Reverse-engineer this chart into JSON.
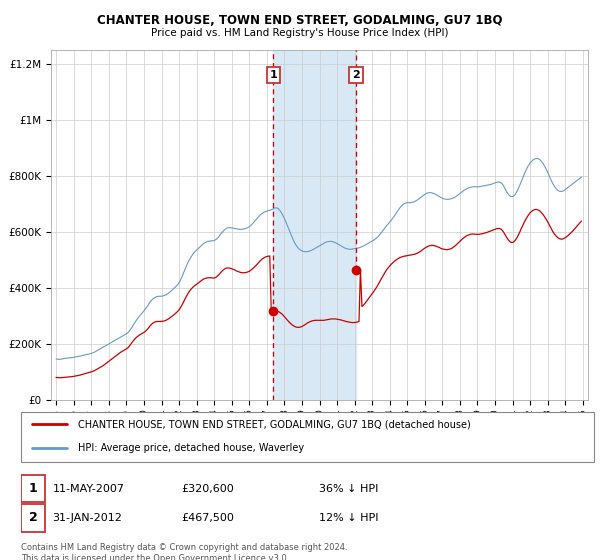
{
  "title": "CHANTER HOUSE, TOWN END STREET, GODALMING, GU7 1BQ",
  "subtitle": "Price paid vs. HM Land Registry's House Price Index (HPI)",
  "ylim": [
    0,
    1250000
  ],
  "xlim": [
    1994.7,
    2025.3
  ],
  "sale1_year": 2007.36,
  "sale1_price": 320600,
  "sale1_label": "1",
  "sale1_date": "11-MAY-2007",
  "sale1_hpi": "36% ↓ HPI",
  "sale2_year": 2012.08,
  "sale2_price": 467500,
  "sale2_label": "2",
  "sale2_date": "31-JAN-2012",
  "sale2_hpi": "12% ↓ HPI",
  "red_color": "#cc0000",
  "blue_color": "#6699cc",
  "shade_color": "#d8e8f5",
  "legend_line1": "CHANTER HOUSE, TOWN END STREET, GODALMING, GU7 1BQ (detached house)",
  "legend_line2": "HPI: Average price, detached house, Waverley",
  "footer": "Contains HM Land Registry data © Crown copyright and database right 2024.\nThis data is licensed under the Open Government Licence v3.0.",
  "hpi_years": [
    1995.0,
    1995.083,
    1995.167,
    1995.25,
    1995.333,
    1995.417,
    1995.5,
    1995.583,
    1995.667,
    1995.75,
    1995.833,
    1995.917,
    1996.0,
    1996.083,
    1996.167,
    1996.25,
    1996.333,
    1996.417,
    1996.5,
    1996.583,
    1996.667,
    1996.75,
    1996.833,
    1996.917,
    1997.0,
    1997.083,
    1997.167,
    1997.25,
    1997.333,
    1997.417,
    1997.5,
    1997.583,
    1997.667,
    1997.75,
    1997.833,
    1997.917,
    1998.0,
    1998.083,
    1998.167,
    1998.25,
    1998.333,
    1998.417,
    1998.5,
    1998.583,
    1998.667,
    1998.75,
    1998.833,
    1998.917,
    1999.0,
    1999.083,
    1999.167,
    1999.25,
    1999.333,
    1999.417,
    1999.5,
    1999.583,
    1999.667,
    1999.75,
    1999.833,
    1999.917,
    2000.0,
    2000.083,
    2000.167,
    2000.25,
    2000.333,
    2000.417,
    2000.5,
    2000.583,
    2000.667,
    2000.75,
    2000.833,
    2000.917,
    2001.0,
    2001.083,
    2001.167,
    2001.25,
    2001.333,
    2001.417,
    2001.5,
    2001.583,
    2001.667,
    2001.75,
    2001.833,
    2001.917,
    2002.0,
    2002.083,
    2002.167,
    2002.25,
    2002.333,
    2002.417,
    2002.5,
    2002.583,
    2002.667,
    2002.75,
    2002.833,
    2002.917,
    2003.0,
    2003.083,
    2003.167,
    2003.25,
    2003.333,
    2003.417,
    2003.5,
    2003.583,
    2003.667,
    2003.75,
    2003.833,
    2003.917,
    2004.0,
    2004.083,
    2004.167,
    2004.25,
    2004.333,
    2004.417,
    2004.5,
    2004.583,
    2004.667,
    2004.75,
    2004.833,
    2004.917,
    2005.0,
    2005.083,
    2005.167,
    2005.25,
    2005.333,
    2005.417,
    2005.5,
    2005.583,
    2005.667,
    2005.75,
    2005.833,
    2005.917,
    2006.0,
    2006.083,
    2006.167,
    2006.25,
    2006.333,
    2006.417,
    2006.5,
    2006.583,
    2006.667,
    2006.75,
    2006.833,
    2006.917,
    2007.0,
    2007.083,
    2007.167,
    2007.25,
    2007.333,
    2007.417,
    2007.5,
    2007.583,
    2007.667,
    2007.75,
    2007.833,
    2007.917,
    2008.0,
    2008.083,
    2008.167,
    2008.25,
    2008.333,
    2008.417,
    2008.5,
    2008.583,
    2008.667,
    2008.75,
    2008.833,
    2008.917,
    2009.0,
    2009.083,
    2009.167,
    2009.25,
    2009.333,
    2009.417,
    2009.5,
    2009.583,
    2009.667,
    2009.75,
    2009.833,
    2009.917,
    2010.0,
    2010.083,
    2010.167,
    2010.25,
    2010.333,
    2010.417,
    2010.5,
    2010.583,
    2010.667,
    2010.75,
    2010.833,
    2010.917,
    2011.0,
    2011.083,
    2011.167,
    2011.25,
    2011.333,
    2011.417,
    2011.5,
    2011.583,
    2011.667,
    2011.75,
    2011.833,
    2011.917,
    2012.0,
    2012.083,
    2012.167,
    2012.25,
    2012.333,
    2012.417,
    2012.5,
    2012.583,
    2012.667,
    2012.75,
    2012.833,
    2012.917,
    2013.0,
    2013.083,
    2013.167,
    2013.25,
    2013.333,
    2013.417,
    2013.5,
    2013.583,
    2013.667,
    2013.75,
    2013.833,
    2013.917,
    2014.0,
    2014.083,
    2014.167,
    2014.25,
    2014.333,
    2014.417,
    2014.5,
    2014.583,
    2014.667,
    2014.75,
    2014.833,
    2014.917,
    2015.0,
    2015.083,
    2015.167,
    2015.25,
    2015.333,
    2015.417,
    2015.5,
    2015.583,
    2015.667,
    2015.75,
    2015.833,
    2015.917,
    2016.0,
    2016.083,
    2016.167,
    2016.25,
    2016.333,
    2016.417,
    2016.5,
    2016.583,
    2016.667,
    2016.75,
    2016.833,
    2016.917,
    2017.0,
    2017.083,
    2017.167,
    2017.25,
    2017.333,
    2017.417,
    2017.5,
    2017.583,
    2017.667,
    2017.75,
    2017.833,
    2017.917,
    2018.0,
    2018.083,
    2018.167,
    2018.25,
    2018.333,
    2018.417,
    2018.5,
    2018.583,
    2018.667,
    2018.75,
    2018.833,
    2018.917,
    2019.0,
    2019.083,
    2019.167,
    2019.25,
    2019.333,
    2019.417,
    2019.5,
    2019.583,
    2019.667,
    2019.75,
    2019.833,
    2019.917,
    2020.0,
    2020.083,
    2020.167,
    2020.25,
    2020.333,
    2020.417,
    2020.5,
    2020.583,
    2020.667,
    2020.75,
    2020.833,
    2020.917,
    2021.0,
    2021.083,
    2021.167,
    2021.25,
    2021.333,
    2021.417,
    2021.5,
    2021.583,
    2021.667,
    2021.75,
    2021.833,
    2021.917,
    2022.0,
    2022.083,
    2022.167,
    2022.25,
    2022.333,
    2022.417,
    2022.5,
    2022.583,
    2022.667,
    2022.75,
    2022.833,
    2022.917,
    2023.0,
    2023.083,
    2023.167,
    2023.25,
    2023.333,
    2023.417,
    2023.5,
    2023.583,
    2023.667,
    2023.75,
    2023.833,
    2023.917,
    2024.0,
    2024.083,
    2024.167,
    2024.25,
    2024.333,
    2024.417,
    2024.5,
    2024.583,
    2024.667,
    2024.75,
    2024.833,
    2024.917
  ],
  "hpi_vals": [
    148000,
    147000,
    146500,
    147000,
    148000,
    149500,
    150000,
    151000,
    151500,
    152000,
    152500,
    153000,
    154000,
    155000,
    156000,
    157500,
    158000,
    159000,
    160500,
    162000,
    163000,
    164000,
    165000,
    166500,
    168000,
    170000,
    172000,
    175000,
    178000,
    181000,
    184000,
    187000,
    190000,
    193000,
    196000,
    199000,
    202000,
    205000,
    208000,
    211000,
    214000,
    217000,
    220000,
    223000,
    226000,
    229000,
    232000,
    235000,
    238000,
    242000,
    248000,
    255000,
    263000,
    272000,
    280000,
    288000,
    295000,
    302000,
    308000,
    314000,
    320000,
    327000,
    334000,
    342000,
    350000,
    357000,
    362000,
    366000,
    369000,
    371000,
    372000,
    372000,
    372000,
    373000,
    375000,
    377000,
    380000,
    384000,
    388000,
    393000,
    398000,
    403000,
    408000,
    413000,
    420000,
    430000,
    442000,
    455000,
    468000,
    480000,
    492000,
    502000,
    511000,
    519000,
    526000,
    532000,
    537000,
    542000,
    547000,
    552000,
    557000,
    561000,
    564000,
    566000,
    568000,
    569000,
    570000,
    570000,
    571000,
    574000,
    578000,
    584000,
    591000,
    598000,
    604000,
    609000,
    613000,
    616000,
    617000,
    617000,
    616000,
    615000,
    614000,
    613000,
    612000,
    611000,
    611000,
    611000,
    612000,
    613000,
    615000,
    617000,
    620000,
    625000,
    630000,
    636000,
    642000,
    648000,
    654000,
    660000,
    665000,
    669000,
    672000,
    674000,
    676000,
    678000,
    679000,
    681000,
    683000,
    686000,
    688000,
    687000,
    684000,
    678000,
    670000,
    660000,
    650000,
    638000,
    625000,
    612000,
    599000,
    586000,
    574000,
    563000,
    554000,
    547000,
    541000,
    537000,
    534000,
    532000,
    531000,
    531000,
    532000,
    533000,
    535000,
    537000,
    540000,
    543000,
    546000,
    549000,
    552000,
    555000,
    558000,
    561000,
    564000,
    566000,
    567000,
    568000,
    568000,
    567000,
    565000,
    563000,
    560000,
    557000,
    554000,
    551000,
    548000,
    545000,
    543000,
    541000,
    540000,
    540000,
    540000,
    541000,
    542000,
    543000,
    544000,
    545000,
    547000,
    549000,
    551000,
    554000,
    557000,
    560000,
    563000,
    566000,
    569000,
    572000,
    576000,
    580000,
    585000,
    591000,
    597000,
    604000,
    611000,
    618000,
    625000,
    631000,
    637000,
    643000,
    650000,
    657000,
    665000,
    673000,
    681000,
    688000,
    694000,
    699000,
    703000,
    705000,
    706000,
    706000,
    706000,
    707000,
    708000,
    710000,
    713000,
    716000,
    720000,
    724000,
    728000,
    732000,
    736000,
    739000,
    741000,
    742000,
    742000,
    741000,
    739000,
    737000,
    734000,
    731000,
    728000,
    725000,
    722000,
    720000,
    719000,
    718000,
    718000,
    719000,
    720000,
    722000,
    724000,
    727000,
    731000,
    735000,
    739000,
    743000,
    747000,
    751000,
    754000,
    757000,
    759000,
    761000,
    762000,
    763000,
    763000,
    763000,
    763000,
    763000,
    764000,
    765000,
    766000,
    767000,
    768000,
    769000,
    770000,
    771000,
    773000,
    775000,
    777000,
    779000,
    780000,
    780000,
    778000,
    773000,
    765000,
    755000,
    745000,
    737000,
    731000,
    728000,
    728000,
    731000,
    737000,
    746000,
    757000,
    769000,
    782000,
    795000,
    808000,
    820000,
    831000,
    840000,
    848000,
    854000,
    859000,
    862000,
    864000,
    864000,
    862000,
    858000,
    852000,
    845000,
    836000,
    826000,
    815000,
    803000,
    791000,
    780000,
    770000,
    762000,
    755000,
    750000,
    747000,
    746000,
    747000,
    749000,
    753000,
    757000,
    761000,
    765000,
    769000,
    773000,
    777000,
    781000,
    785000,
    789000,
    793000,
    797000
  ],
  "price_years": [
    1995.0,
    1995.083,
    1995.167,
    1995.25,
    1995.333,
    1995.417,
    1995.5,
    1995.583,
    1995.667,
    1995.75,
    1995.833,
    1995.917,
    1996.0,
    1996.083,
    1996.167,
    1996.25,
    1996.333,
    1996.417,
    1996.5,
    1996.583,
    1996.667,
    1996.75,
    1996.833,
    1996.917,
    1997.0,
    1997.083,
    1997.167,
    1997.25,
    1997.333,
    1997.417,
    1997.5,
    1997.583,
    1997.667,
    1997.75,
    1997.833,
    1997.917,
    1998.0,
    1998.083,
    1998.167,
    1998.25,
    1998.333,
    1998.417,
    1998.5,
    1998.583,
    1998.667,
    1998.75,
    1998.833,
    1998.917,
    1999.0,
    1999.083,
    1999.167,
    1999.25,
    1999.333,
    1999.417,
    1999.5,
    1999.583,
    1999.667,
    1999.75,
    1999.833,
    1999.917,
    2000.0,
    2000.083,
    2000.167,
    2000.25,
    2000.333,
    2000.417,
    2000.5,
    2000.583,
    2000.667,
    2000.75,
    2000.833,
    2000.917,
    2001.0,
    2001.083,
    2001.167,
    2001.25,
    2001.333,
    2001.417,
    2001.5,
    2001.583,
    2001.667,
    2001.75,
    2001.833,
    2001.917,
    2002.0,
    2002.083,
    2002.167,
    2002.25,
    2002.333,
    2002.417,
    2002.5,
    2002.583,
    2002.667,
    2002.75,
    2002.833,
    2002.917,
    2003.0,
    2003.083,
    2003.167,
    2003.25,
    2003.333,
    2003.417,
    2003.5,
    2003.583,
    2003.667,
    2003.75,
    2003.833,
    2003.917,
    2004.0,
    2004.083,
    2004.167,
    2004.25,
    2004.333,
    2004.417,
    2004.5,
    2004.583,
    2004.667,
    2004.75,
    2004.833,
    2004.917,
    2005.0,
    2005.083,
    2005.167,
    2005.25,
    2005.333,
    2005.417,
    2005.5,
    2005.583,
    2005.667,
    2005.75,
    2005.833,
    2005.917,
    2006.0,
    2006.083,
    2006.167,
    2006.25,
    2006.333,
    2006.417,
    2006.5,
    2006.583,
    2006.667,
    2006.75,
    2006.833,
    2006.917,
    2007.0,
    2007.083,
    2007.167,
    2007.25,
    2007.333,
    2007.417,
    2007.5,
    2007.583,
    2007.667,
    2007.75,
    2007.833,
    2007.917,
    2008.0,
    2008.083,
    2008.167,
    2008.25,
    2008.333,
    2008.417,
    2008.5,
    2008.583,
    2008.667,
    2008.75,
    2008.833,
    2008.917,
    2009.0,
    2009.083,
    2009.167,
    2009.25,
    2009.333,
    2009.417,
    2009.5,
    2009.583,
    2009.667,
    2009.75,
    2009.833,
    2009.917,
    2010.0,
    2010.083,
    2010.167,
    2010.25,
    2010.333,
    2010.417,
    2010.5,
    2010.583,
    2010.667,
    2010.75,
    2010.833,
    2010.917,
    2011.0,
    2011.083,
    2011.167,
    2011.25,
    2011.333,
    2011.417,
    2011.5,
    2011.583,
    2011.667,
    2011.75,
    2011.833,
    2011.917,
    2012.0,
    2012.083,
    2012.167,
    2012.25,
    2012.333,
    2012.417,
    2012.5,
    2012.583,
    2012.667,
    2012.75,
    2012.833,
    2012.917,
    2013.0,
    2013.083,
    2013.167,
    2013.25,
    2013.333,
    2013.417,
    2013.5,
    2013.583,
    2013.667,
    2013.75,
    2013.833,
    2013.917,
    2014.0,
    2014.083,
    2014.167,
    2014.25,
    2014.333,
    2014.417,
    2014.5,
    2014.583,
    2014.667,
    2014.75,
    2014.833,
    2014.917,
    2015.0,
    2015.083,
    2015.167,
    2015.25,
    2015.333,
    2015.417,
    2015.5,
    2015.583,
    2015.667,
    2015.75,
    2015.833,
    2015.917,
    2016.0,
    2016.083,
    2016.167,
    2016.25,
    2016.333,
    2016.417,
    2016.5,
    2016.583,
    2016.667,
    2016.75,
    2016.833,
    2016.917,
    2017.0,
    2017.083,
    2017.167,
    2017.25,
    2017.333,
    2017.417,
    2017.5,
    2017.583,
    2017.667,
    2017.75,
    2017.833,
    2017.917,
    2018.0,
    2018.083,
    2018.167,
    2018.25,
    2018.333,
    2018.417,
    2018.5,
    2018.583,
    2018.667,
    2018.75,
    2018.833,
    2018.917,
    2019.0,
    2019.083,
    2019.167,
    2019.25,
    2019.333,
    2019.417,
    2019.5,
    2019.583,
    2019.667,
    2019.75,
    2019.833,
    2019.917,
    2020.0,
    2020.083,
    2020.167,
    2020.25,
    2020.333,
    2020.417,
    2020.5,
    2020.583,
    2020.667,
    2020.75,
    2020.833,
    2020.917,
    2021.0,
    2021.083,
    2021.167,
    2021.25,
    2021.333,
    2021.417,
    2021.5,
    2021.583,
    2021.667,
    2021.75,
    2021.833,
    2021.917,
    2022.0,
    2022.083,
    2022.167,
    2022.25,
    2022.333,
    2022.417,
    2022.5,
    2022.583,
    2022.667,
    2022.75,
    2022.833,
    2022.917,
    2023.0,
    2023.083,
    2023.167,
    2023.25,
    2023.333,
    2023.417,
    2023.5,
    2023.583,
    2023.667,
    2023.75,
    2023.833,
    2023.917,
    2024.0,
    2024.083,
    2024.167,
    2024.25,
    2024.333,
    2024.417,
    2024.5,
    2024.583,
    2024.667,
    2024.75,
    2024.833,
    2024.917
  ],
  "price_vals": [
    82000,
    81500,
    81000,
    81000,
    81500,
    82000,
    82500,
    83000,
    83500,
    84000,
    84500,
    85000,
    86000,
    87000,
    88000,
    89000,
    90000,
    91500,
    93000,
    94500,
    96000,
    97500,
    99000,
    100500,
    102000,
    104000,
    106000,
    109000,
    112000,
    115000,
    118000,
    121000,
    124000,
    128000,
    132000,
    136000,
    140000,
    144000,
    148000,
    152000,
    156000,
    160000,
    164000,
    168000,
    172000,
    175000,
    178000,
    181000,
    184000,
    188000,
    194000,
    201000,
    208000,
    215000,
    221000,
    226000,
    230000,
    234000,
    237000,
    240000,
    243000,
    247000,
    252000,
    258000,
    265000,
    271000,
    276000,
    279000,
    281000,
    282000,
    282000,
    282000,
    282000,
    283000,
    284000,
    286000,
    289000,
    292000,
    296000,
    300000,
    304000,
    308000,
    313000,
    318000,
    324000,
    332000,
    341000,
    351000,
    362000,
    372000,
    381000,
    389000,
    396000,
    402000,
    407000,
    411000,
    415000,
    419000,
    423000,
    427000,
    431000,
    434000,
    436000,
    437000,
    438000,
    438000,
    438000,
    437000,
    437000,
    439000,
    443000,
    448000,
    454000,
    460000,
    465000,
    469000,
    472000,
    473000,
    473000,
    472000,
    470000,
    468000,
    466000,
    463000,
    461000,
    459000,
    457000,
    456000,
    456000,
    456000,
    457000,
    459000,
    461000,
    465000,
    469000,
    474000,
    479000,
    484000,
    490000,
    496000,
    501000,
    506000,
    509000,
    512000,
    514000,
    515000,
    516000,
    318000,
    319000,
    321000,
    320600,
    319000,
    317000,
    314000,
    310000,
    305000,
    299000,
    293000,
    287000,
    281000,
    276000,
    271000,
    267000,
    264000,
    262000,
    261000,
    261000,
    262000,
    264000,
    267000,
    270000,
    274000,
    277000,
    280000,
    282000,
    284000,
    285000,
    286000,
    286000,
    286000,
    286000,
    286000,
    286000,
    286000,
    287000,
    288000,
    289000,
    290000,
    291000,
    291000,
    291000,
    291000,
    290000,
    289000,
    288000,
    287000,
    285000,
    284000,
    282000,
    281000,
    280000,
    279000,
    278000,
    278000,
    278000,
    279000,
    280000,
    282000,
    467500,
    335000,
    340000,
    346000,
    353000,
    360000,
    367000,
    374000,
    381000,
    388000,
    396000,
    404000,
    413000,
    422000,
    432000,
    441000,
    450000,
    459000,
    467000,
    474000,
    480000,
    486000,
    491000,
    496000,
    500000,
    504000,
    507000,
    510000,
    512000,
    514000,
    515000,
    516000,
    517000,
    518000,
    519000,
    520000,
    521000,
    522000,
    524000,
    526000,
    529000,
    532000,
    536000,
    540000,
    544000,
    547000,
    550000,
    552000,
    553000,
    554000,
    553000,
    552000,
    550000,
    548000,
    546000,
    543000,
    541000,
    540000,
    539000,
    538000,
    539000,
    540000,
    542000,
    545000,
    549000,
    553000,
    558000,
    563000,
    568000,
    573000,
    578000,
    582000,
    586000,
    589000,
    591000,
    593000,
    594000,
    594000,
    594000,
    593000,
    593000,
    593000,
    594000,
    595000,
    596000,
    598000,
    599000,
    601000,
    603000,
    605000,
    607000,
    609000,
    611000,
    613000,
    614000,
    614000,
    612000,
    607000,
    600000,
    591000,
    582000,
    574000,
    568000,
    564000,
    564000,
    567000,
    573000,
    581000,
    591000,
    602000,
    614000,
    625000,
    636000,
    646000,
    655000,
    663000,
    670000,
    675000,
    679000,
    681000,
    682000,
    681000,
    679000,
    675000,
    669000,
    663000,
    655000,
    647000,
    638000,
    628000,
    618000,
    608000,
    599000,
    592000,
    586000,
    581000,
    578000,
    576000,
    576000,
    578000,
    581000,
    585000,
    589000,
    594000,
    599000,
    604000,
    610000,
    616000,
    622000,
    628000,
    634000,
    640000
  ]
}
